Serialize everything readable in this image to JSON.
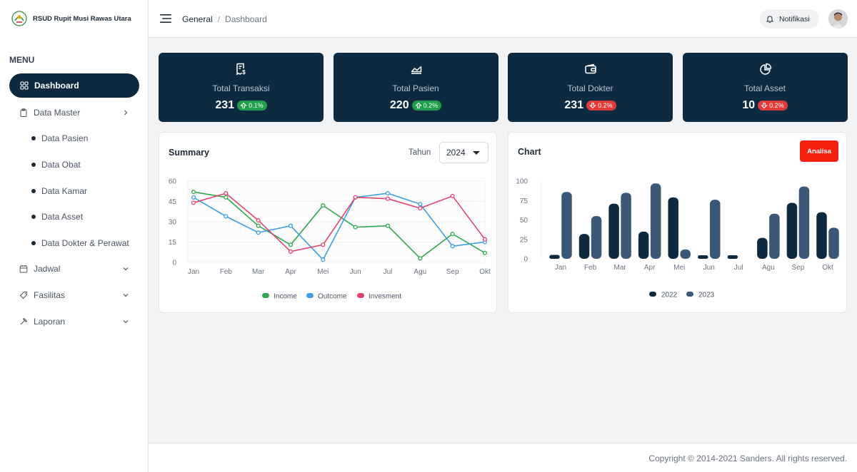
{
  "brand": {
    "name": "RSUD Rupit Musi Rawas Utara"
  },
  "sidebar": {
    "menu_title": "MENU",
    "items": [
      {
        "label": "Dashboard",
        "icon": "grid-icon",
        "active": true
      },
      {
        "label": "Data Master",
        "icon": "clipboard-icon",
        "chevron": "chevron-right-icon"
      },
      {
        "label": "Data Pasien",
        "sub": true
      },
      {
        "label": "Data Obat",
        "sub": true
      },
      {
        "label": "Data Kamar",
        "sub": true
      },
      {
        "label": "Data Asset",
        "sub": true
      },
      {
        "label": "Data Dokter & Perawat",
        "sub": true
      },
      {
        "label": "Jadwal",
        "icon": "calendar-icon",
        "chevron": "chevron-down-icon"
      },
      {
        "label": "Fasilitas",
        "icon": "tag-icon",
        "chevron": "chevron-down-icon"
      },
      {
        "label": "Laporan",
        "icon": "hammer-icon",
        "chevron": "chevron-down-icon"
      }
    ]
  },
  "header": {
    "breadcrumb": {
      "root": "General",
      "separator": "/",
      "current": "Dashboard"
    },
    "notification_label": "Notifikasi"
  },
  "stats": [
    {
      "label": "Total Transaksi",
      "value": "231",
      "change": "0.1%",
      "trend": "up",
      "icon": "receipt-icon"
    },
    {
      "label": "Total Pasien",
      "value": "220",
      "change": "0.2%",
      "trend": "up",
      "icon": "area-chart-icon"
    },
    {
      "label": "Total Dokter",
      "value": "231",
      "change": "0.2%",
      "trend": "down",
      "icon": "wallet-icon"
    },
    {
      "label": "Total Asset",
      "value": "10",
      "change": "0.2%",
      "trend": "down",
      "icon": "pie-chart-icon"
    }
  ],
  "summary": {
    "title": "Summary",
    "year_label": "Tahun",
    "year_value": "2024"
  },
  "chart_panel": {
    "title": "Chart",
    "analyze_label": "Analisa"
  },
  "chart_data": [
    {
      "type": "line",
      "categories": [
        "Jan",
        "Feb",
        "Mar",
        "Apr",
        "Mei",
        "Jun",
        "Jul",
        "Agu",
        "Sep",
        "Okt"
      ],
      "ylim": [
        0,
        60
      ],
      "yticks": [
        0,
        15,
        30,
        45,
        60
      ],
      "series": [
        {
          "name": "Income",
          "color": "#2fa84f",
          "values": [
            52,
            48,
            27,
            13,
            42,
            26,
            27,
            3,
            21,
            7
          ]
        },
        {
          "name": "Outcome",
          "color": "#3c9ee0",
          "values": [
            48,
            34,
            22,
            27,
            2,
            48,
            51,
            43,
            12,
            15
          ]
        },
        {
          "name": "Invesment",
          "color": "#e0436f",
          "values": [
            44,
            51,
            31,
            8,
            13,
            48,
            47,
            40,
            49,
            17
          ]
        }
      ],
      "grid": true,
      "legend": "bottom"
    },
    {
      "type": "bar",
      "categories": [
        "Jan",
        "Feb",
        "Mar",
        "Apr",
        "Mei",
        "Jun",
        "Jul",
        "Agu",
        "Sep",
        "Okt"
      ],
      "ylim": [
        0,
        100
      ],
      "yticks": [
        0,
        25,
        50,
        75,
        100
      ],
      "series": [
        {
          "name": "2022",
          "color": "#0e2a41",
          "values": [
            5,
            32,
            71,
            35,
            79,
            4,
            3,
            27,
            72,
            60
          ]
        },
        {
          "name": "2023",
          "color": "#3b5877",
          "values": [
            86,
            55,
            85,
            97,
            12,
            76,
            0,
            58,
            93,
            40
          ]
        }
      ],
      "grid": false,
      "legend": "bottom"
    }
  ],
  "footer": {
    "copyright": "Copyright © 2014-2021 Sanders. All rights reserved."
  }
}
